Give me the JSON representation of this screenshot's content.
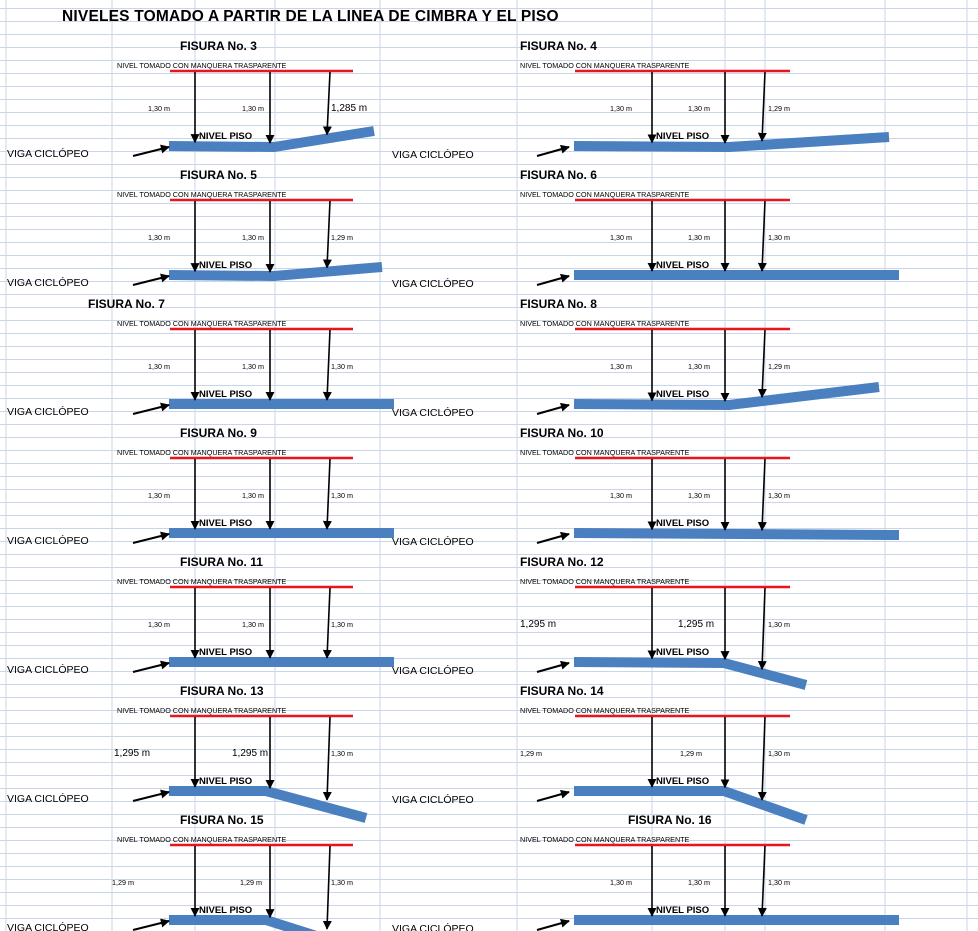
{
  "title": "NIVELES TOMADO A PARTIR DE LA LINEA DE CIMBRA Y EL PISO",
  "labels": {
    "hose": "NIVEL TOMADO CON MANQUERA TRASPARENTE",
    "floor": "NIVEL PISO",
    "beam": "VIGA CICLÓPEO"
  },
  "figures": [
    {
      "title": "FISURA No. 3",
      "values": [
        "1,30 m",
        "1,30 m",
        "1,285 m"
      ]
    },
    {
      "title": "FISURA No. 4",
      "values": [
        "1,30 m",
        "1,30 m",
        "1,29 m"
      ]
    },
    {
      "title": "FISURA No. 5",
      "values": [
        "1,30 m",
        "1,30 m",
        "1,29 m"
      ]
    },
    {
      "title": "FISURA No. 6",
      "values": [
        "1,30 m",
        "1,30 m",
        "1,30 m"
      ]
    },
    {
      "title": "FISURA No. 7",
      "values": [
        "1,30 m",
        "1,30 m",
        "1,30 m"
      ]
    },
    {
      "title": "FISURA No. 8",
      "values": [
        "1,30 m",
        "1,30 m",
        "1,29 m"
      ]
    },
    {
      "title": "FISURA No. 9",
      "values": [
        "1,30 m",
        "1,30 m",
        "1,30 m"
      ]
    },
    {
      "title": "FISURA No. 10",
      "values": [
        "1,30 m",
        "1,30 m",
        "1,30 m"
      ]
    },
    {
      "title": "FISURA No. 11",
      "values": [
        "1,30 m",
        "1,30 m",
        "1,30 m"
      ]
    },
    {
      "title": "FISURA No. 12",
      "values": [
        "1,295 m",
        "1,295 m",
        "1,30 m"
      ]
    },
    {
      "title": "FISURA No. 13",
      "values": [
        "1,295 m",
        "1,295 m",
        "1,30 m"
      ]
    },
    {
      "title": "FISURA No. 14",
      "values": [
        "1,29 m",
        "1,29 m",
        "1,30 m"
      ]
    },
    {
      "title": "FISURA No. 15",
      "values": [
        "1,29 m",
        "1,29 m",
        "1,30 m"
      ]
    },
    {
      "title": "FISURA No. 16",
      "values": [
        "1,30 m",
        "1,30 m",
        "1,30 m"
      ]
    }
  ],
  "colors": {
    "reference_line": "#e8141e",
    "beam": "#4a7fc0",
    "grid": "#c9d6ea",
    "arrow": "#000000"
  }
}
